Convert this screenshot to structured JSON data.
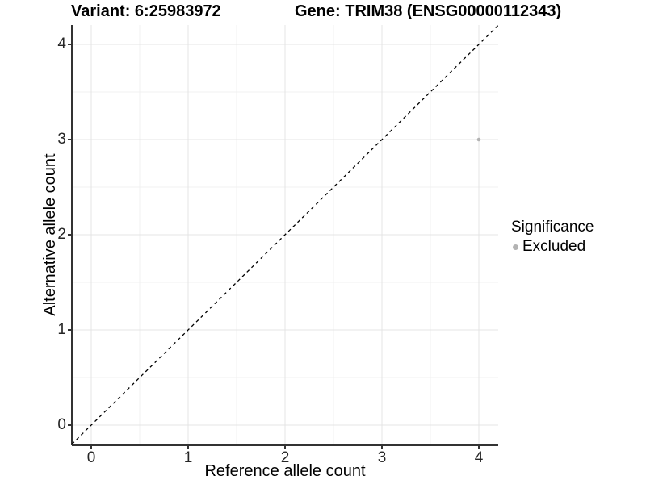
{
  "titles": {
    "variant": "Variant: 6:25983972",
    "gene": "Gene: TRIM38 (ENSG00000112343)"
  },
  "chart_data": {
    "type": "scatter",
    "xlabel": "Reference allele count",
    "ylabel": "Alternative allele count",
    "xlim": [
      -0.2,
      4.2
    ],
    "ylim": [
      -0.2,
      4.2
    ],
    "x_ticks": [
      0,
      1,
      2,
      3,
      4
    ],
    "y_ticks": [
      0,
      1,
      2,
      3,
      4
    ],
    "x_minor_ticks": [
      0.5,
      1.5,
      2.5,
      3.5
    ],
    "y_minor_ticks": [
      0.5,
      1.5,
      2.5,
      3.5
    ],
    "grid": "major+minor",
    "legend_position": "right",
    "series": [
      {
        "name": "Excluded",
        "color": "#b3b3b3",
        "points": [
          {
            "x": 4,
            "y": 3
          }
        ]
      }
    ],
    "reference_line": {
      "type": "identity",
      "slope": 1,
      "intercept": 0,
      "style": "dashed",
      "color": "#000000"
    }
  },
  "legend": {
    "title": "Significance",
    "items": [
      {
        "label": "Excluded",
        "color": "#b3b3b3"
      }
    ]
  },
  "colors": {
    "axis_line": "#333333",
    "grid_major": "#e4e4e4",
    "grid_minor": "#f1f1f1",
    "tick_mark": "#333333"
  }
}
